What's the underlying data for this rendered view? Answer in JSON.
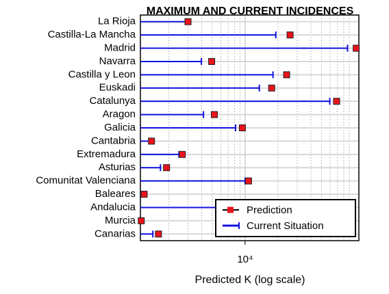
{
  "chart_data": {
    "type": "dot-range",
    "title": "MAXIMUM AND CURRENT INCIDENCES",
    "xlabel": "Predicted K (log scale)",
    "log_x": true,
    "xlim": [
      1100,
      110000
    ],
    "xticks": [
      {
        "value": 10000,
        "label": "10⁴"
      }
    ],
    "minor_xticks": [
      2000,
      3000,
      4000,
      5000,
      6000,
      7000,
      8000,
      9000,
      20000,
      30000,
      40000,
      50000,
      60000,
      70000,
      80000,
      90000
    ],
    "grid": true,
    "legend": "lower right",
    "categories": [
      "La Rioja",
      "Castilla-La Mancha",
      "Madrid",
      "Navarra",
      "Castilla y Leon",
      "Euskadi",
      "Catalunya",
      "Aragon",
      "Galicia",
      "Cantabria",
      "Extremadura",
      "Asturias",
      "Comunitat Valenciana",
      "Baleares",
      "Andalucia",
      "Murcia",
      "Canarias"
    ],
    "series": [
      {
        "name": "Prediction",
        "color": "#e8141c",
        "values": [
          3000,
          25800,
          104000,
          4940,
          24000,
          17500,
          68800,
          5230,
          9440,
          1390,
          2660,
          1910,
          10750,
          1190,
          15000,
          1120,
          1610
        ]
      },
      {
        "name": "Current Situation",
        "color": "#1010e0",
        "values": [
          2850,
          19100,
          86600,
          3980,
          18000,
          13500,
          59600,
          4160,
          8180,
          1350,
          2480,
          1680,
          10000,
          1160,
          12000,
          1120,
          1430
        ]
      }
    ]
  }
}
